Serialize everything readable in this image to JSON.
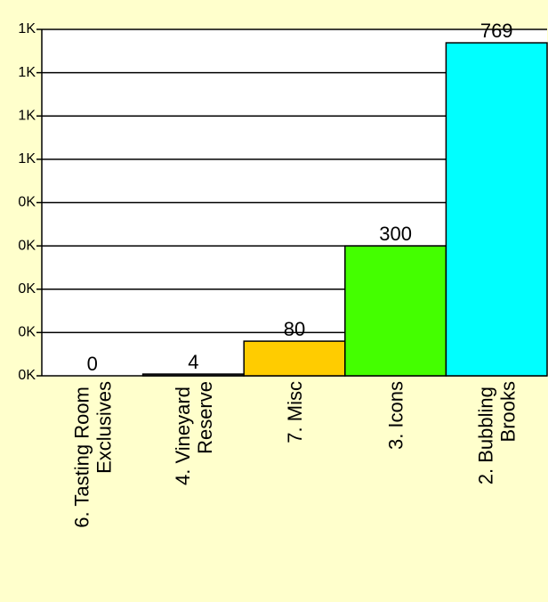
{
  "chart_data": {
    "type": "bar",
    "categories": [
      "6. Tasting Room Exclusives",
      "4. Vineyard Reserve",
      "7. Misc",
      "3. Icons",
      "2. Bubbling Brooks"
    ],
    "values": [
      0,
      4,
      80,
      300,
      769
    ],
    "colors": [
      "#3333cc",
      "#333333",
      "#ffcc00",
      "#44ff00",
      "#00ffff"
    ],
    "ylim": [
      0,
      800
    ],
    "yticks": [
      {
        "value": 0,
        "label": "0K"
      },
      {
        "value": 100,
        "label": "0K"
      },
      {
        "value": 200,
        "label": "0K"
      },
      {
        "value": 300,
        "label": "0K"
      },
      {
        "value": 400,
        "label": "0K"
      },
      {
        "value": 500,
        "label": "1K"
      },
      {
        "value": 600,
        "label": "1K"
      },
      {
        "value": 700,
        "label": "1K"
      },
      {
        "value": 800,
        "label": "1K"
      }
    ],
    "grid": true
  }
}
